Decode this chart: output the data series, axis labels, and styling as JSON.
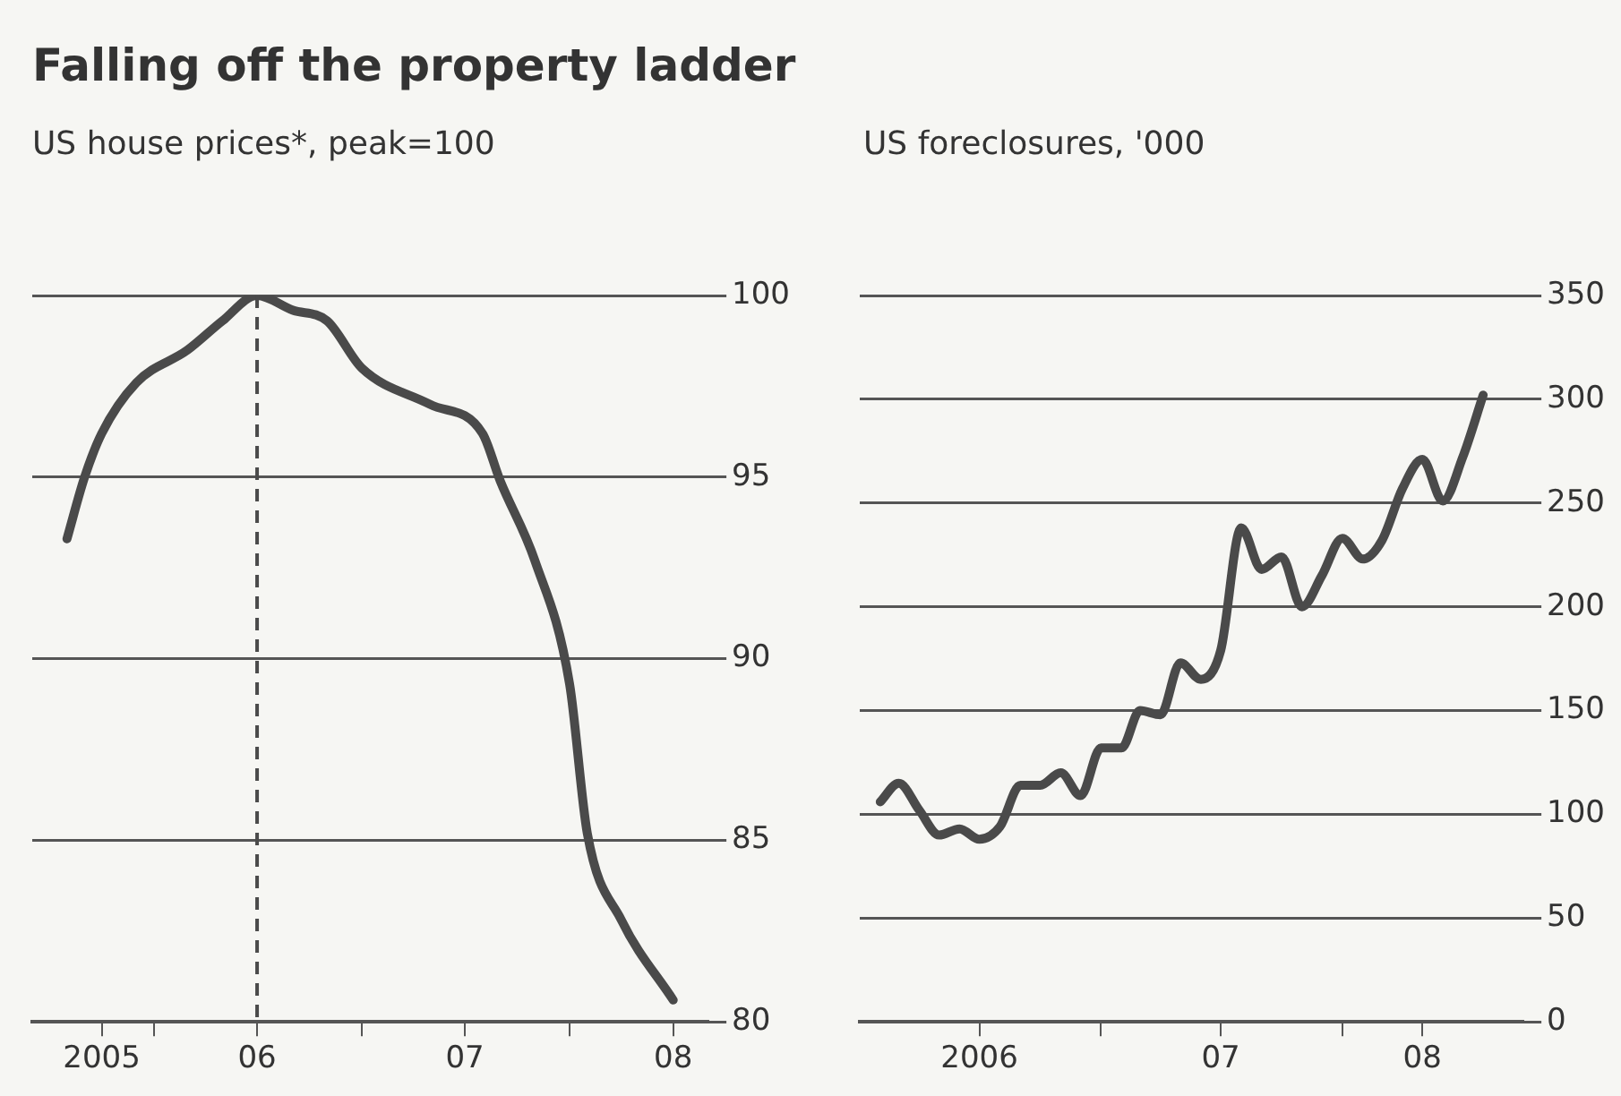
{
  "chart_data": [
    {
      "type": "line",
      "title": "Falling off the property ladder",
      "subtitle": "US house prices*, peak=100",
      "marker": "none",
      "grid": "y",
      "x": [
        "2005-08",
        "2005-09",
        "2005-10",
        "2005-12",
        "2006-03",
        "2006-05",
        "2006-07",
        "2006-09",
        "2006-11",
        "2007-01",
        "2007-05",
        "2007-08",
        "2007-09",
        "2007-11",
        "2008-01",
        "2008-02",
        "2008-04",
        "2008-07"
      ],
      "series": [
        {
          "color": "#4a4a4a",
          "values": [
            93.3,
            95.0,
            96.2,
            97.6,
            98.5,
            99.3,
            100,
            99.6,
            99.3,
            98.0,
            97.0,
            96.2,
            94.9,
            92.7,
            89.3,
            85.2,
            82.8,
            80.6
          ]
        }
      ],
      "xlim": [
        "2005-06",
        "2008-09"
      ],
      "xticks": [
        {
          "value": "2005-10",
          "label": "2005"
        },
        {
          "value": "2006-01",
          "label": null
        },
        {
          "value": "2006-07",
          "label": "06"
        },
        {
          "value": "2007-01",
          "label": null
        },
        {
          "value": "2007-07",
          "label": "07"
        },
        {
          "value": "2008-01",
          "label": null
        },
        {
          "value": "2008-07",
          "label": "08"
        }
      ],
      "ylim": [
        80,
        100
      ],
      "yticks": [
        80,
        85,
        90,
        95,
        100
      ],
      "ref_lines": [
        {
          "axis": "x",
          "value": "2006-07",
          "line_style": "dashed",
          "color": "#4a4a4a"
        }
      ]
    },
    {
      "type": "line",
      "subtitle": "US foreclosures, '000",
      "marker": "none",
      "grid": "y",
      "x": [
        "2006-02",
        "2006-03",
        "2006-04",
        "2006-05",
        "2006-06",
        "2006-07",
        "2006-08",
        "2006-09",
        "2006-10",
        "2006-11",
        "2006-12",
        "2007-01",
        "2007-02",
        "2007-03",
        "2007-04",
        "2007-05",
        "2007-06",
        "2007-07",
        "2007-08",
        "2007-09",
        "2007-10",
        "2007-11",
        "2007-12",
        "2008-01",
        "2008-02",
        "2008-03",
        "2008-04",
        "2008-05",
        "2008-06",
        "2008-07",
        "2008-08"
      ],
      "series": [
        {
          "color": "#4a4a4a",
          "values": [
            106,
            115,
            102,
            90,
            93,
            88,
            94,
            114,
            114,
            120,
            109,
            132,
            132,
            150,
            148,
            173,
            165,
            179,
            238,
            218,
            224,
            200,
            215,
            233,
            223,
            232,
            257,
            271,
            251,
            272,
            302
          ]
        }
      ],
      "xlim": [
        "2006-01",
        "2008-10"
      ],
      "xticks": [
        {
          "value": "2006-07",
          "label": "2006"
        },
        {
          "value": "2007-01",
          "label": null
        },
        {
          "value": "2007-07",
          "label": "07"
        },
        {
          "value": "2008-01",
          "label": null
        },
        {
          "value": "2008-05",
          "label": "08"
        }
      ],
      "ylim": [
        0,
        350
      ],
      "yticks": [
        0,
        50,
        100,
        150,
        200,
        250,
        300,
        350
      ]
    }
  ]
}
